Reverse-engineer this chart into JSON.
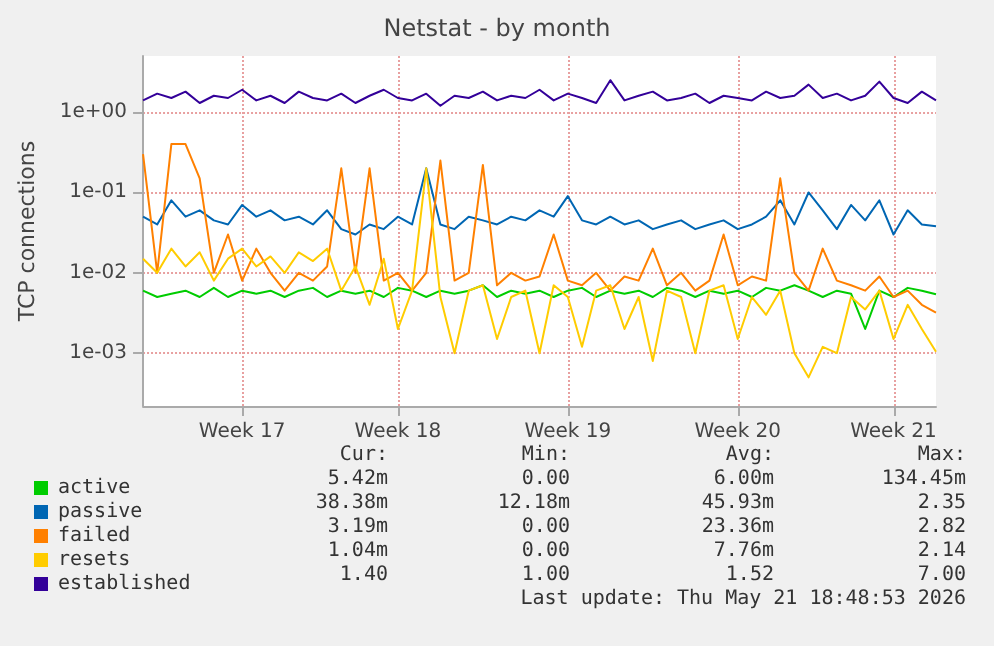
{
  "chart_data": {
    "type": "line",
    "title": "Netstat - by month",
    "ylabel": "TCP connections",
    "log": true,
    "grid": true,
    "legend": "bottom",
    "marker": "none",
    "line_style": "solid",
    "ylim": [
      0.00022,
      5
    ],
    "yticks": [
      {
        "value": 0.001,
        "label": "1e-03"
      },
      {
        "value": 0.01,
        "label": "1e-02"
      },
      {
        "value": 0.1,
        "label": "1e-01"
      },
      {
        "value": 1,
        "label": "1e+00"
      }
    ],
    "categories": [
      null,
      null,
      null,
      null,
      null,
      null,
      null,
      "Week 17",
      null,
      null,
      null,
      null,
      null,
      null,
      null,
      null,
      null,
      null,
      "Week 18",
      null,
      null,
      null,
      null,
      null,
      null,
      null,
      null,
      null,
      null,
      null,
      "Week 19",
      null,
      null,
      null,
      null,
      null,
      null,
      null,
      null,
      null,
      null,
      null,
      "Week 20",
      null,
      null,
      null,
      null,
      null,
      null,
      null,
      null,
      null,
      null,
      "Week 21",
      null,
      null,
      null
    ],
    "series": [
      {
        "name": "active",
        "color": "#00cc00",
        "values": [
          0.006,
          0.005,
          0.0055,
          0.006,
          0.005,
          0.0065,
          0.005,
          0.006,
          0.0055,
          0.006,
          0.005,
          0.006,
          0.0065,
          0.005,
          0.006,
          0.0055,
          0.006,
          0.005,
          0.0065,
          0.006,
          0.005,
          0.006,
          0.0055,
          0.006,
          0.007,
          0.005,
          0.006,
          0.0055,
          0.006,
          0.005,
          0.006,
          0.0065,
          0.005,
          0.006,
          0.0055,
          0.006,
          0.005,
          0.0065,
          0.006,
          0.005,
          0.006,
          0.0055,
          0.006,
          0.005,
          0.0065,
          0.006,
          0.007,
          0.006,
          0.005,
          0.006,
          0.0055,
          0.002,
          0.006,
          0.005,
          0.0065,
          0.006,
          0.00542
        ]
      },
      {
        "name": "passive",
        "color": "#0066b3",
        "values": [
          0.05,
          0.04,
          0.08,
          0.05,
          0.06,
          0.045,
          0.04,
          0.07,
          0.05,
          0.06,
          0.045,
          0.05,
          0.04,
          0.06,
          0.035,
          0.03,
          0.04,
          0.035,
          0.05,
          0.04,
          0.2,
          0.04,
          0.035,
          0.05,
          0.045,
          0.04,
          0.05,
          0.045,
          0.06,
          0.05,
          0.09,
          0.045,
          0.04,
          0.05,
          0.04,
          0.045,
          0.035,
          0.04,
          0.045,
          0.035,
          0.04,
          0.045,
          0.035,
          0.04,
          0.05,
          0.08,
          0.04,
          0.1,
          0.06,
          0.035,
          0.07,
          0.045,
          0.08,
          0.03,
          0.06,
          0.04,
          0.038
        ]
      },
      {
        "name": "failed",
        "color": "#ff8000",
        "values": [
          0.3,
          0.01,
          0.4,
          0.4,
          0.15,
          0.01,
          0.03,
          0.008,
          0.02,
          0.01,
          0.006,
          0.01,
          0.008,
          0.012,
          0.2,
          0.01,
          0.2,
          0.008,
          0.01,
          0.006,
          0.01,
          0.25,
          0.008,
          0.01,
          0.22,
          0.007,
          0.01,
          0.008,
          0.009,
          0.03,
          0.008,
          0.007,
          0.01,
          0.006,
          0.009,
          0.008,
          0.02,
          0.007,
          0.01,
          0.006,
          0.008,
          0.03,
          0.007,
          0.009,
          0.008,
          0.15,
          0.01,
          0.006,
          0.02,
          0.008,
          0.007,
          0.006,
          0.009,
          0.005,
          0.006,
          0.004,
          0.0032
        ]
      },
      {
        "name": "resets",
        "color": "#ffcc00",
        "values": [
          0.015,
          0.01,
          0.02,
          0.012,
          0.018,
          0.008,
          0.015,
          0.02,
          0.012,
          0.016,
          0.01,
          0.018,
          0.014,
          0.02,
          0.006,
          0.012,
          0.004,
          0.015,
          0.002,
          0.006,
          0.2,
          0.005,
          0.001,
          0.006,
          0.007,
          0.0015,
          0.005,
          0.006,
          0.001,
          0.007,
          0.005,
          0.0012,
          0.006,
          0.007,
          0.002,
          0.005,
          0.0008,
          0.006,
          0.005,
          0.001,
          0.006,
          0.007,
          0.0015,
          0.005,
          0.003,
          0.006,
          0.001,
          0.0005,
          0.0012,
          0.001,
          0.005,
          0.0035,
          0.006,
          0.0015,
          0.004,
          0.002,
          0.00104
        ]
      },
      {
        "name": "established",
        "color": "#330099",
        "values": [
          1.4,
          1.7,
          1.5,
          1.8,
          1.3,
          1.6,
          1.5,
          1.9,
          1.4,
          1.6,
          1.3,
          1.8,
          1.5,
          1.4,
          1.7,
          1.3,
          1.6,
          1.9,
          1.5,
          1.4,
          1.7,
          1.2,
          1.6,
          1.5,
          1.8,
          1.4,
          1.6,
          1.5,
          1.9,
          1.4,
          1.7,
          1.5,
          1.3,
          2.5,
          1.4,
          1.6,
          1.8,
          1.4,
          1.5,
          1.7,
          1.3,
          1.6,
          1.5,
          1.4,
          1.8,
          1.5,
          1.6,
          2.2,
          1.5,
          1.7,
          1.4,
          1.6,
          2.4,
          1.5,
          1.3,
          1.8,
          1.4
        ]
      }
    ],
    "annotations": [
      "Cur:",
      "Min:",
      "Avg:",
      "Max:",
      "5.42m",
      "0.00",
      "6.00m",
      "134.45m",
      "38.38m",
      "12.18m",
      "45.93m",
      "2.35",
      "3.19m",
      "0.00",
      "23.36m",
      "2.82",
      "1.04m",
      "0.00",
      "7.76m",
      "2.14",
      "1.40",
      "1.00",
      "1.52",
      "7.00",
      "Last update: Thu May 21 18:48:53 2026"
    ]
  }
}
